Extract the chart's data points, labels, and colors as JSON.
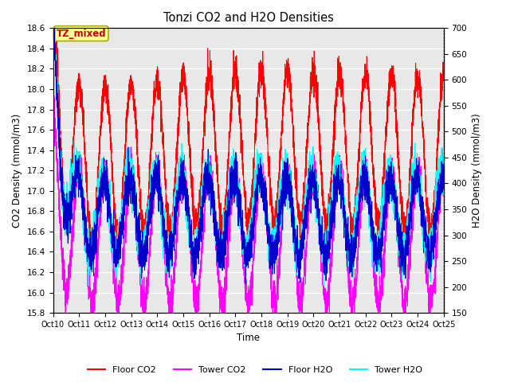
{
  "title": "Tonzi CO2 and H2O Densities",
  "xlabel": "Time",
  "ylabel_left": "CO2 Density (mmol/m3)",
  "ylabel_right": "H2O Density (mmol/m3)",
  "xlim": [
    0,
    15
  ],
  "ylim_left": [
    15.8,
    18.6
  ],
  "ylim_right": [
    150,
    700
  ],
  "annotation_text": "TZ_mixed",
  "colors": {
    "floor_co2": "#FF0000",
    "tower_co2": "#FF00FF",
    "floor_h2o": "#0000CD",
    "tower_h2o": "#00FFFF"
  },
  "background_color": "#E8E8E8",
  "grid_color": "#FFFFFF",
  "n_points": 4000,
  "seed": 7
}
